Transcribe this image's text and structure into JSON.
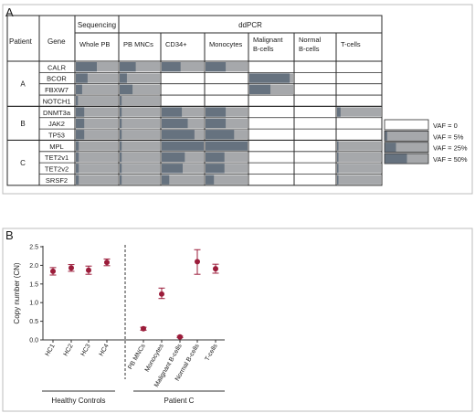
{
  "panel_a": {
    "label": "A",
    "headers": {
      "patient": "Patient",
      "gene": "Gene",
      "sequencing": "Sequencing",
      "ddpcr": "ddPCR",
      "columns": [
        "Whole PB",
        "PB MNCs",
        "CD34+",
        "Monocytes",
        "Malignant\nB-cells",
        "Normal\nB-cells",
        "T-cells"
      ]
    },
    "groups": [
      {
        "patient": "A",
        "genes": [
          "CALR",
          "BCOR",
          "FBXW7",
          "NOTCH1"
        ]
      },
      {
        "patient": "B",
        "genes": [
          "DNMT3a",
          "JAK2",
          "TP53"
        ]
      },
      {
        "patient": "C",
        "genes": [
          "MPL",
          "TET2v1",
          "TET2v2",
          "SRSF2"
        ]
      }
    ],
    "vaf_rows": [
      {
        "gene": "CALR",
        "vaf": [
          0.5,
          0.4,
          0.45,
          0.48,
          null,
          null,
          null
        ]
      },
      {
        "gene": "BCOR",
        "vaf": [
          0.28,
          0.18,
          null,
          null,
          0.92,
          null,
          null
        ]
      },
      {
        "gene": "FBXW7",
        "vaf": [
          0.15,
          0.32,
          null,
          null,
          0.48,
          null,
          null
        ]
      },
      {
        "gene": "NOTCH1",
        "vaf": [
          0.05,
          0.05,
          null,
          null,
          null,
          null,
          null
        ]
      },
      {
        "gene": "DNMT3a",
        "vaf": [
          0.2,
          0.05,
          0.48,
          0.48,
          null,
          null,
          0.08
        ]
      },
      {
        "gene": "JAK2",
        "vaf": [
          0.2,
          0.05,
          0.62,
          0.48,
          null,
          null,
          null
        ]
      },
      {
        "gene": "TP53",
        "vaf": [
          0.2,
          0.05,
          0.78,
          0.68,
          null,
          null,
          null
        ]
      },
      {
        "gene": "MPL",
        "vaf": [
          0.07,
          0.05,
          1.0,
          1.0,
          null,
          null,
          0.03
        ]
      },
      {
        "gene": "TET2v1",
        "vaf": [
          0.07,
          0.05,
          0.55,
          0.45,
          null,
          null,
          0.03
        ]
      },
      {
        "gene": "TET2v2",
        "vaf": [
          0.07,
          0.05,
          0.5,
          0.45,
          null,
          null,
          0.03
        ]
      },
      {
        "gene": "SRSF2",
        "vaf": [
          0.07,
          0.05,
          0.18,
          0.2,
          null,
          null,
          0.03
        ]
      }
    ],
    "legend": [
      {
        "label": "VAF = 0",
        "vaf": 0
      },
      {
        "label": "VAF = 5%",
        "vaf": 0.05
      },
      {
        "label": "VAF = 25%",
        "vaf": 0.25
      },
      {
        "label": "VAF = 50%",
        "vaf": 0.5
      }
    ],
    "colors": {
      "full": "#a6a8ab",
      "filled": "#66727f",
      "border": "#2a2a2a"
    }
  },
  "panel_b": {
    "label": "B",
    "group_labels": [
      "Healthy Controls",
      "Patient C"
    ]
  },
  "chart_data": {
    "type": "scatter",
    "ylabel": "Copy number (CN)",
    "xlabel": "",
    "ylim": [
      0,
      2.5
    ],
    "yticks": [
      "0.0",
      "0.5",
      "1.0",
      "1.5",
      "2.0",
      "2.5"
    ],
    "categories": [
      "HC1",
      "HC2",
      "HC3",
      "HC4",
      "PB MNCs",
      "Monocytes",
      "Malignant B-cells",
      "Normal B-cells",
      "T-cells"
    ],
    "values": [
      1.84,
      1.93,
      1.87,
      2.08,
      0.3,
      1.23,
      0.08,
      2.1,
      1.91
    ],
    "error_low": [
      0.1,
      0.09,
      0.11,
      0.09,
      0.04,
      0.12,
      0.02,
      0.34,
      0.12
    ],
    "error_high": [
      0.1,
      0.09,
      0.11,
      0.09,
      0.04,
      0.16,
      0.02,
      0.32,
      0.12
    ],
    "point_color": "#9b1c3a"
  }
}
